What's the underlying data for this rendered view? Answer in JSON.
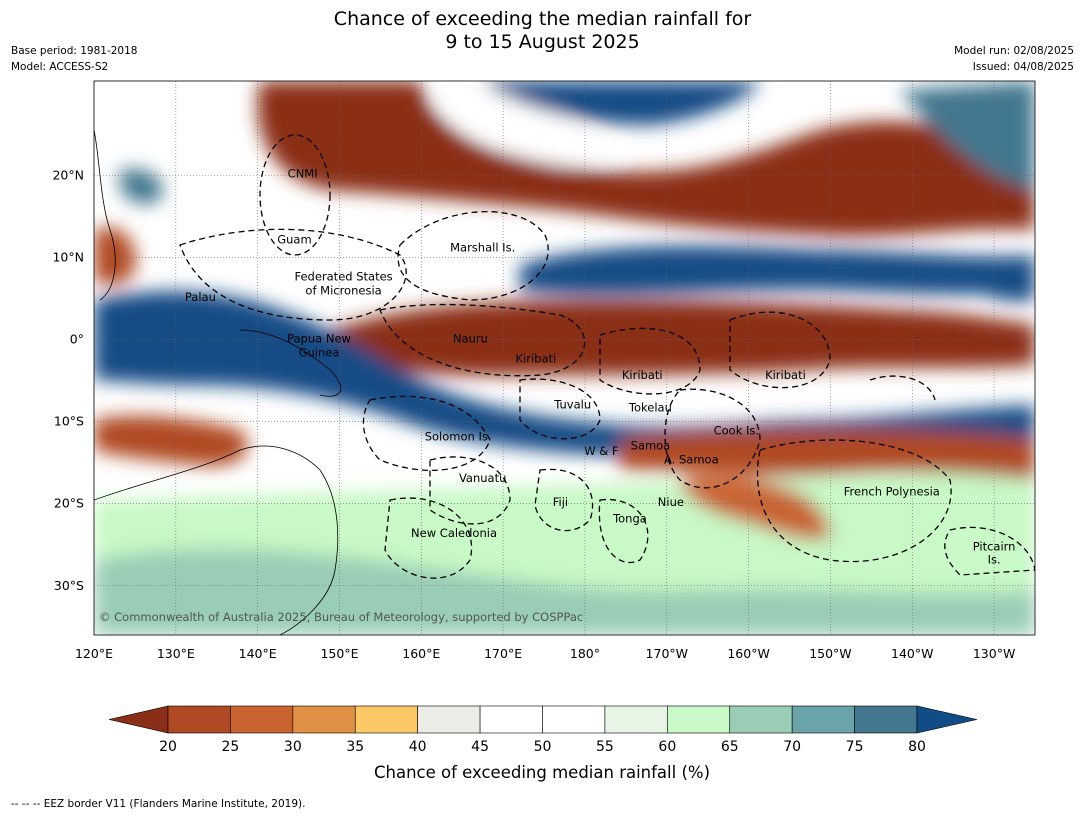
{
  "title_line1": "Chance of exceeding the median rainfall for",
  "title_line2": "9 to 15 August 2025",
  "meta_left": [
    "Base period: 1981-2018",
    "Model: ACCESS-S2"
  ],
  "meta_right": [
    "Model run: 02/08/2025",
    "Issued: 04/08/2025"
  ],
  "lon_labels": [
    "120°E",
    "130°E",
    "140°E",
    "150°E",
    "160°E",
    "170°E",
    "180°",
    "170°W",
    "160°W",
    "150°W",
    "140°W",
    "130°W"
  ],
  "lat_labels": [
    "20°N",
    "10°N",
    "0°",
    "10°S",
    "20°S",
    "30°S"
  ],
  "places": [
    {
      "name": "CNMI",
      "lon": 145.5,
      "lat": 20.2
    },
    {
      "name": "Guam",
      "lon": 144.5,
      "lat": 12.2
    },
    {
      "name": "Marshall Is.",
      "lon": 167.5,
      "lat": 11.2
    },
    {
      "name": "Federated States",
      "lon": 150.5,
      "lat": 7.7
    },
    {
      "name": "of Micronesia",
      "lon": 150.5,
      "lat": 6.0
    },
    {
      "name": "Palau",
      "lon": 133,
      "lat": 5.2
    },
    {
      "name": "Papua New",
      "lon": 147.5,
      "lat": 0.1
    },
    {
      "name": "Guinea",
      "lon": 147.5,
      "lat": -1.6
    },
    {
      "name": "Nauru",
      "lon": 166,
      "lat": 0.1
    },
    {
      "name": "Kiribati",
      "lon": 174,
      "lat": -2.3
    },
    {
      "name": "Kiribati",
      "lon": -173,
      "lat": -4.3
    },
    {
      "name": "Kiribati",
      "lon": -155.5,
      "lat": -4.3
    },
    {
      "name": "Tuvalu",
      "lon": 178.5,
      "lat": -7.9
    },
    {
      "name": "Tokelau",
      "lon": -172,
      "lat": -8.3
    },
    {
      "name": "Cook Is.",
      "lon": -161.5,
      "lat": -11.1
    },
    {
      "name": "Solomon Is.",
      "lon": 164.5,
      "lat": -11.8
    },
    {
      "name": "Samoa",
      "lon": -172,
      "lat": -12.9
    },
    {
      "name": "W & F",
      "lon": -178,
      "lat": -13.6
    },
    {
      "name": "A. Samoa",
      "lon": -167,
      "lat": -14.6
    },
    {
      "name": "Vanuatu",
      "lon": 167.5,
      "lat": -16.9
    },
    {
      "name": "French Polynesia",
      "lon": -142.5,
      "lat": -18.5
    },
    {
      "name": "Fiji",
      "lon": 177,
      "lat": -19.8
    },
    {
      "name": "Niue",
      "lon": -169.5,
      "lat": -19.8
    },
    {
      "name": "Tonga",
      "lon": -174.5,
      "lat": -21.8
    },
    {
      "name": "New Caledonia",
      "lon": 164,
      "lat": -23.6
    },
    {
      "name": "Pitcairn",
      "lon": -130,
      "lat": -25.2
    },
    {
      "name": "Is.",
      "lon": -130,
      "lat": -26.8
    }
  ],
  "copyright": "© Commonwealth of Australia 2025, Bureau of Meteorology, supported by COSPPac",
  "colorbar": {
    "label": "Chance of exceeding median rainfall (%)",
    "ticks": [
      "20",
      "25",
      "30",
      "35",
      "40",
      "45",
      "50",
      "55",
      "60",
      "65",
      "70",
      "75",
      "80"
    ],
    "colors": [
      "#8b2e18",
      "#b04a24",
      "#c96430",
      "#e09044",
      "#fbc865",
      "#ecebe6",
      "#ffffff",
      "#ffffff",
      "#e6f5e4",
      "#c8f9c6",
      "#99cdb5",
      "#6aa3a8",
      "#42778f",
      "#124c86"
    ]
  },
  "footer": "--  --  -- EEZ border V11 (Flanders Marine Institute, 2019)."
}
